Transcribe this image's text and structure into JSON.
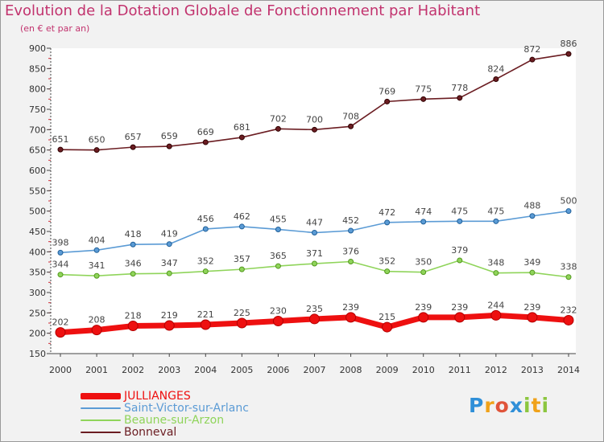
{
  "chart_data": {
    "type": "line",
    "title": "Evolution de la Dotation Globale de Fonctionnement par Habitant",
    "subtitle": "(en € et par an)",
    "x": [
      "2000",
      "2001",
      "2002",
      "2003",
      "2004",
      "2005",
      "2006",
      "2007",
      "2008",
      "2009",
      "2010",
      "2011",
      "2012",
      "2013",
      "2014"
    ],
    "ylim": [
      150,
      900
    ],
    "yticks": [
      150,
      200,
      250,
      300,
      350,
      400,
      450,
      500,
      550,
      600,
      650,
      700,
      750,
      800,
      850,
      900
    ],
    "grid": false,
    "legend_position": "bottom-left",
    "series": [
      {
        "name": "JULLIANGES",
        "color": "#ee1010",
        "values": [
          202,
          208,
          218,
          219,
          221,
          225,
          230,
          235,
          239,
          215,
          239,
          239,
          244,
          239,
          232
        ]
      },
      {
        "name": "Saint-Victor-sur-Arlanc",
        "color": "#5b9bd5",
        "values": [
          398,
          404,
          418,
          419,
          456,
          462,
          455,
          447,
          452,
          472,
          474,
          475,
          475,
          488,
          500
        ]
      },
      {
        "name": "Beaune-sur-Arzon",
        "color": "#8fd45a",
        "values": [
          344,
          341,
          346,
          347,
          352,
          357,
          365,
          371,
          376,
          352,
          350,
          379,
          348,
          349,
          338
        ]
      },
      {
        "name": "Bonneval",
        "color": "#6b1d22",
        "values": [
          651,
          650,
          657,
          659,
          669,
          681,
          702,
          700,
          708,
          769,
          775,
          778,
          824,
          872,
          886
        ]
      }
    ]
  },
  "logo": {
    "letters": [
      "P",
      "r",
      "o",
      "x",
      "i",
      "t",
      "i"
    ],
    "colors": [
      "#2f8fd8",
      "#f0a21a",
      "#e0543a",
      "#2f8fd8",
      "#8cc63f",
      "#f0a21a",
      "#8cc63f"
    ]
  }
}
